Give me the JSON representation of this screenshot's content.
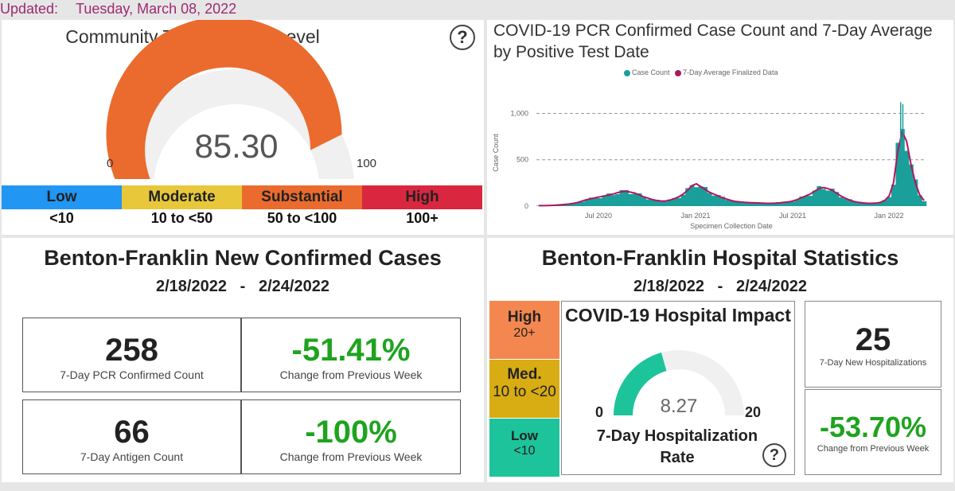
{
  "header": {
    "updated_label": "Updated:",
    "updated_date": "Tuesday, March 08, 2022"
  },
  "transmission": {
    "title": "Community Transmission Level",
    "value": "85.30",
    "value_num": 85.3,
    "min": "0",
    "max": "100",
    "levels": [
      {
        "label": "Low",
        "range": "<10",
        "color": "#2196f3"
      },
      {
        "label": "Moderate",
        "range": "10 to <50",
        "color": "#e8c83a"
      },
      {
        "label": "Substantial",
        "range": "50 to <100",
        "color": "#ea6b2d"
      },
      {
        "label": "High",
        "range": "100+",
        "color": "#d8273e"
      }
    ],
    "gauge_color": "#ea6b2d"
  },
  "chart_panel": {
    "title": "COVID-19 PCR Confirmed Case Count and 7-Day Average by Positive Test Date",
    "legend_case": "Case Count",
    "legend_avg": "7-Day Average Finalized Data"
  },
  "chart_data": {
    "type": "bar",
    "xlabel": "Specimen Collection Date",
    "ylabel": "Case Count",
    "yticks": [
      "0",
      "500",
      "1,000"
    ],
    "ylim": [
      0,
      1150
    ],
    "xticks": [
      "Jul 2020",
      "Jan 2021",
      "Jul 2021",
      "Jan 2022"
    ],
    "grid": true,
    "series": [
      {
        "name": "Case Count",
        "color": "#1a9f9a"
      },
      {
        "name": "7-Day Average Finalized Data",
        "color": "#b0175f"
      }
    ],
    "weekly_avg": [
      5,
      5,
      6,
      8,
      10,
      14,
      18,
      22,
      30,
      40,
      55,
      70,
      80,
      90,
      100,
      110,
      120,
      130,
      145,
      155,
      160,
      150,
      140,
      120,
      100,
      85,
      70,
      60,
      55,
      55,
      65,
      80,
      100,
      130,
      170,
      220,
      240,
      210,
      180,
      150,
      130,
      110,
      90,
      75,
      60,
      50,
      45,
      40,
      38,
      36,
      34,
      32,
      30,
      30,
      32,
      35,
      40,
      45,
      55,
      70,
      90,
      110,
      130,
      160,
      190,
      200,
      190,
      170,
      140,
      110,
      85,
      65,
      50,
      40,
      35,
      30,
      30,
      32,
      40,
      60,
      110,
      250,
      600,
      800,
      700,
      450,
      250,
      120,
      60
    ]
  },
  "cases": {
    "title": "Benton-Franklin New Confirmed Cases",
    "date_from": "2/18/2022",
    "dash": "-",
    "date_to": "2/24/2022",
    "pcr_value": "258",
    "pcr_label": "7-Day PCR Confirmed Count",
    "pcr_change": "-51.41%",
    "pcr_change_label": "Change from Previous Week",
    "antigen_value": "66",
    "antigen_label": "7-Day Antigen Count",
    "antigen_change": "-100%",
    "antigen_change_label": "Change from Previous Week"
  },
  "hospital": {
    "title": "Benton-Franklin Hospital Statistics",
    "date_from": "2/18/2022",
    "dash": "-",
    "date_to": "2/24/2022",
    "levels": [
      {
        "label": "High",
        "range": "20+",
        "color": "#f4874f"
      },
      {
        "label": "Med.",
        "range": "10 to <20",
        "color": "#d8ac13"
      },
      {
        "label": "Low",
        "range": "<10",
        "color": "#1dc39b"
      }
    ],
    "impact_title": "COVID-19 Hospital Impact",
    "impact_value": "8.27",
    "impact_value_num": 8.27,
    "impact_min": "0",
    "impact_max": "20",
    "impact_caption": "7-Day Hospitalization Rate",
    "gauge_color": "#1dc39b",
    "new_hosp_value": "25",
    "new_hosp_label": "7-Day New Hospitalizations",
    "change_value": "-53.70%",
    "change_label": "Change from Previous Week"
  }
}
